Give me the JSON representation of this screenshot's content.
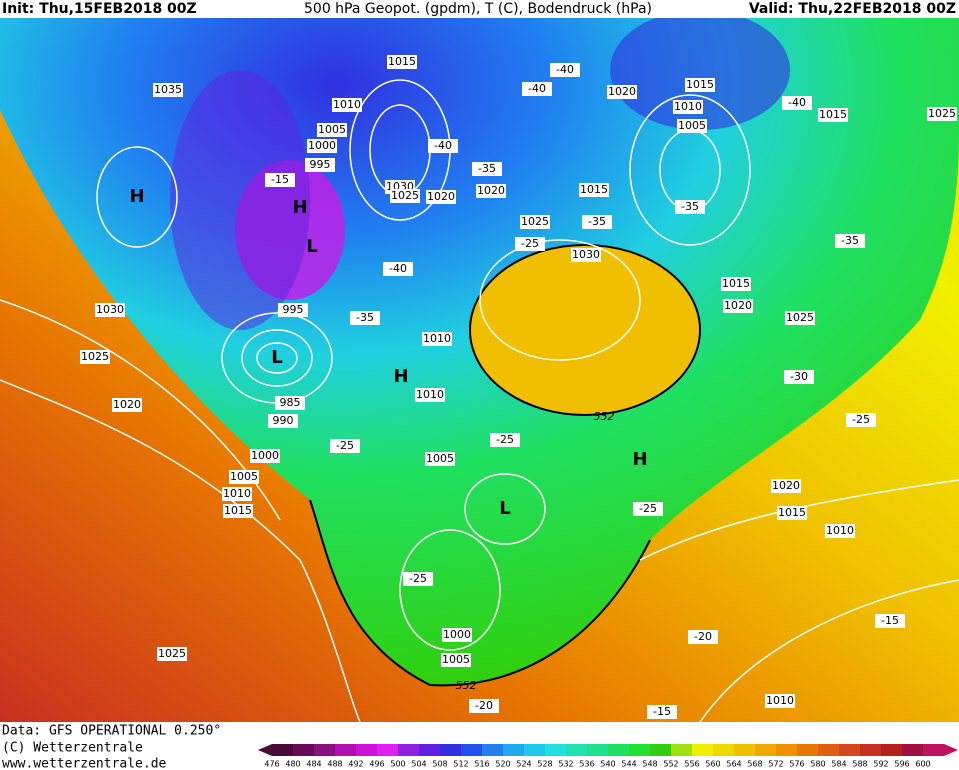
{
  "header": {
    "init": "Init: Thu,15FEB2018 00Z",
    "description": "500 hPa Geopot. (gpdm), T (C), Bodendruck (hPa)",
    "valid": "Valid: Thu,22FEB2018 00Z"
  },
  "footer": {
    "source": "Data: GFS OPERATIONAL 0.250°",
    "copyright": "(C) Wetterzentrale",
    "url": "www.wetterzentrale.de"
  },
  "colorbar": {
    "ticks": [
      476,
      480,
      484,
      488,
      492,
      496,
      500,
      504,
      508,
      512,
      516,
      520,
      524,
      528,
      532,
      536,
      540,
      544,
      548,
      552,
      556,
      560,
      564,
      568,
      572,
      576,
      580,
      584,
      588,
      592,
      596,
      600
    ],
    "colors": [
      "#4a0a3a",
      "#6a0a5a",
      "#8a1080",
      "#b010b0",
      "#d010d8",
      "#e020f0",
      "#9020e0",
      "#6020e0",
      "#3030e0",
      "#2050f0",
      "#2080f0",
      "#20a8f0",
      "#20c8f0",
      "#20e0e0",
      "#20e0b0",
      "#20e090",
      "#20e060",
      "#20e030",
      "#30d010",
      "#a0e010",
      "#f0f000",
      "#f0d800",
      "#f0c000",
      "#f0a800",
      "#f09000",
      "#e87800",
      "#e06010",
      "#d84820",
      "#c83020",
      "#b82020",
      "#a01040",
      "#c01060"
    ]
  },
  "map": {
    "isobar_labels": [
      "1035",
      "1015",
      "1010",
      "1005",
      "1000",
      "995",
      "1030",
      "1025",
      "1020",
      "1020",
      "1015",
      "1025",
      "1030",
      "1020",
      "1015",
      "1010",
      "1005",
      "1015",
      "1025",
      "1015",
      "1020",
      "1025",
      "1030",
      "1025",
      "1020",
      "995",
      "985",
      "990",
      "1010",
      "1010",
      "1000",
      "1005",
      "1010",
      "1015",
      "1005",
      "1020",
      "1015",
      "1010",
      "1000",
      "1005",
      "1025",
      "1010"
    ],
    "temperature_labels": [
      "-15",
      "-40",
      "-40",
      "-40",
      "-35",
      "-35",
      "-25",
      "-40",
      "-35",
      "-35",
      "-40",
      "-35",
      "-30",
      "-25",
      "-25",
      "-25",
      "-25",
      "-25",
      "-20",
      "-15",
      "-20",
      "-15"
    ],
    "pressure_centers": [
      "H",
      "H",
      "L",
      "L",
      "H",
      "H",
      "L"
    ],
    "contour_labels": [
      "552",
      "552"
    ]
  }
}
